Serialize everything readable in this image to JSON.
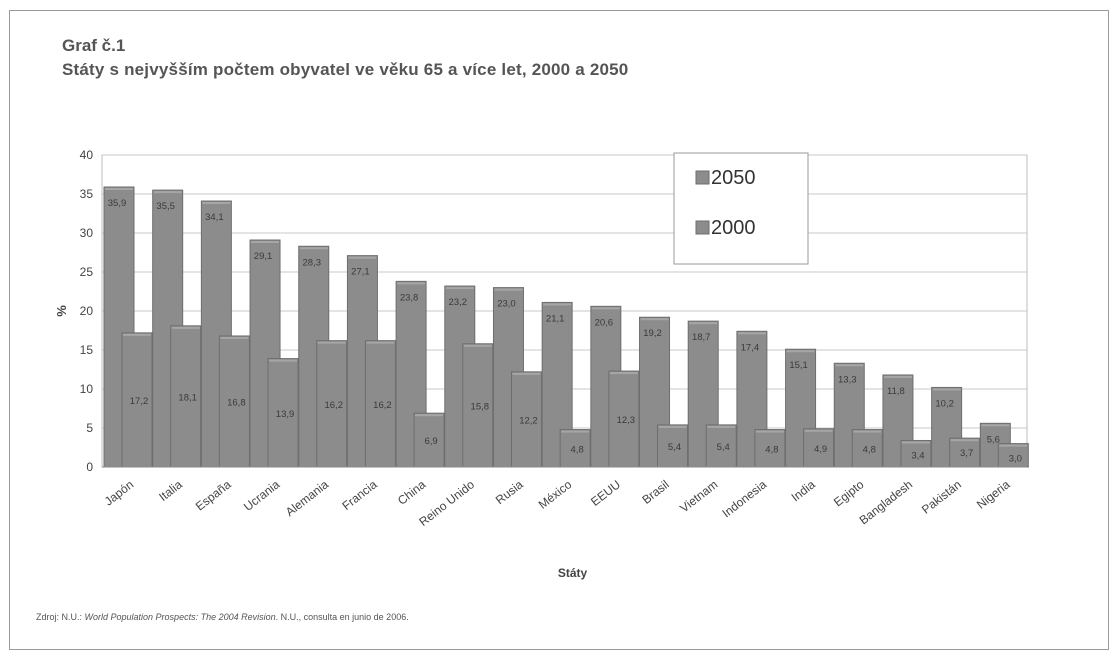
{
  "caption": {
    "line1": "Graf č.1",
    "line2": "Státy s nejvyšším počtem obyvatel ve věku 65 a více let, 2000 a 2050"
  },
  "source": {
    "prefix": "Zdroj: N.U.: ",
    "title": "World Population Prospects: The 2004 Revision",
    "suffix": ". N.U., consulta en junio de 2006."
  },
  "chart_data": {
    "type": "bar",
    "xlabel": "Státy",
    "ylabel": "%",
    "ylim": [
      0,
      40
    ],
    "yticks": [
      0,
      5,
      10,
      15,
      20,
      25,
      30,
      35,
      40
    ],
    "grid": true,
    "legend": "top-right",
    "categories": [
      "Japón",
      "Italia",
      "España",
      "Ucrania",
      "Alemania",
      "Francia",
      "China",
      "Reino Unido",
      "Rusia",
      "México",
      "EEUU",
      "Brasil",
      "Vietnam",
      "Indonesia",
      "India",
      "Egipto",
      "Bangladesh",
      "Pakistán",
      "Nigeria"
    ],
    "series": [
      {
        "name": "2050",
        "color": "#8c8c8c",
        "values": [
          35.9,
          35.5,
          34.1,
          29.1,
          28.3,
          27.1,
          23.8,
          23.2,
          23.0,
          21.1,
          20.6,
          19.2,
          18.7,
          17.4,
          15.1,
          13.3,
          11.8,
          10.2,
          5.6
        ]
      },
      {
        "name": "2000",
        "color": "#8c8c8c",
        "values": [
          17.2,
          18.1,
          16.8,
          13.9,
          16.2,
          16.2,
          6.9,
          15.8,
          12.2,
          4.8,
          12.3,
          5.4,
          5.4,
          4.8,
          4.9,
          4.8,
          3.4,
          3.7,
          3.0
        ]
      }
    ],
    "data_labels_2050": [
      "35,9",
      "35,5",
      "34,1",
      "29,1",
      "28,3",
      "27,1",
      "23,8",
      "23,2",
      "23,0",
      "21,1",
      "20,6",
      "19,2",
      "18,7",
      "17,4",
      "15,1",
      "13,3",
      "11,8",
      "10,2",
      "5,6"
    ],
    "data_labels_2000": [
      "17,2",
      "18,1",
      "16,8",
      "13,9",
      "16,2",
      "16,2",
      "6,9",
      "15,8",
      "12,2",
      "4,8",
      "12,3",
      "5,4",
      "5,4",
      "4,8",
      "4,9",
      "4,8",
      "3,4",
      "3,7",
      "3,0"
    ]
  }
}
